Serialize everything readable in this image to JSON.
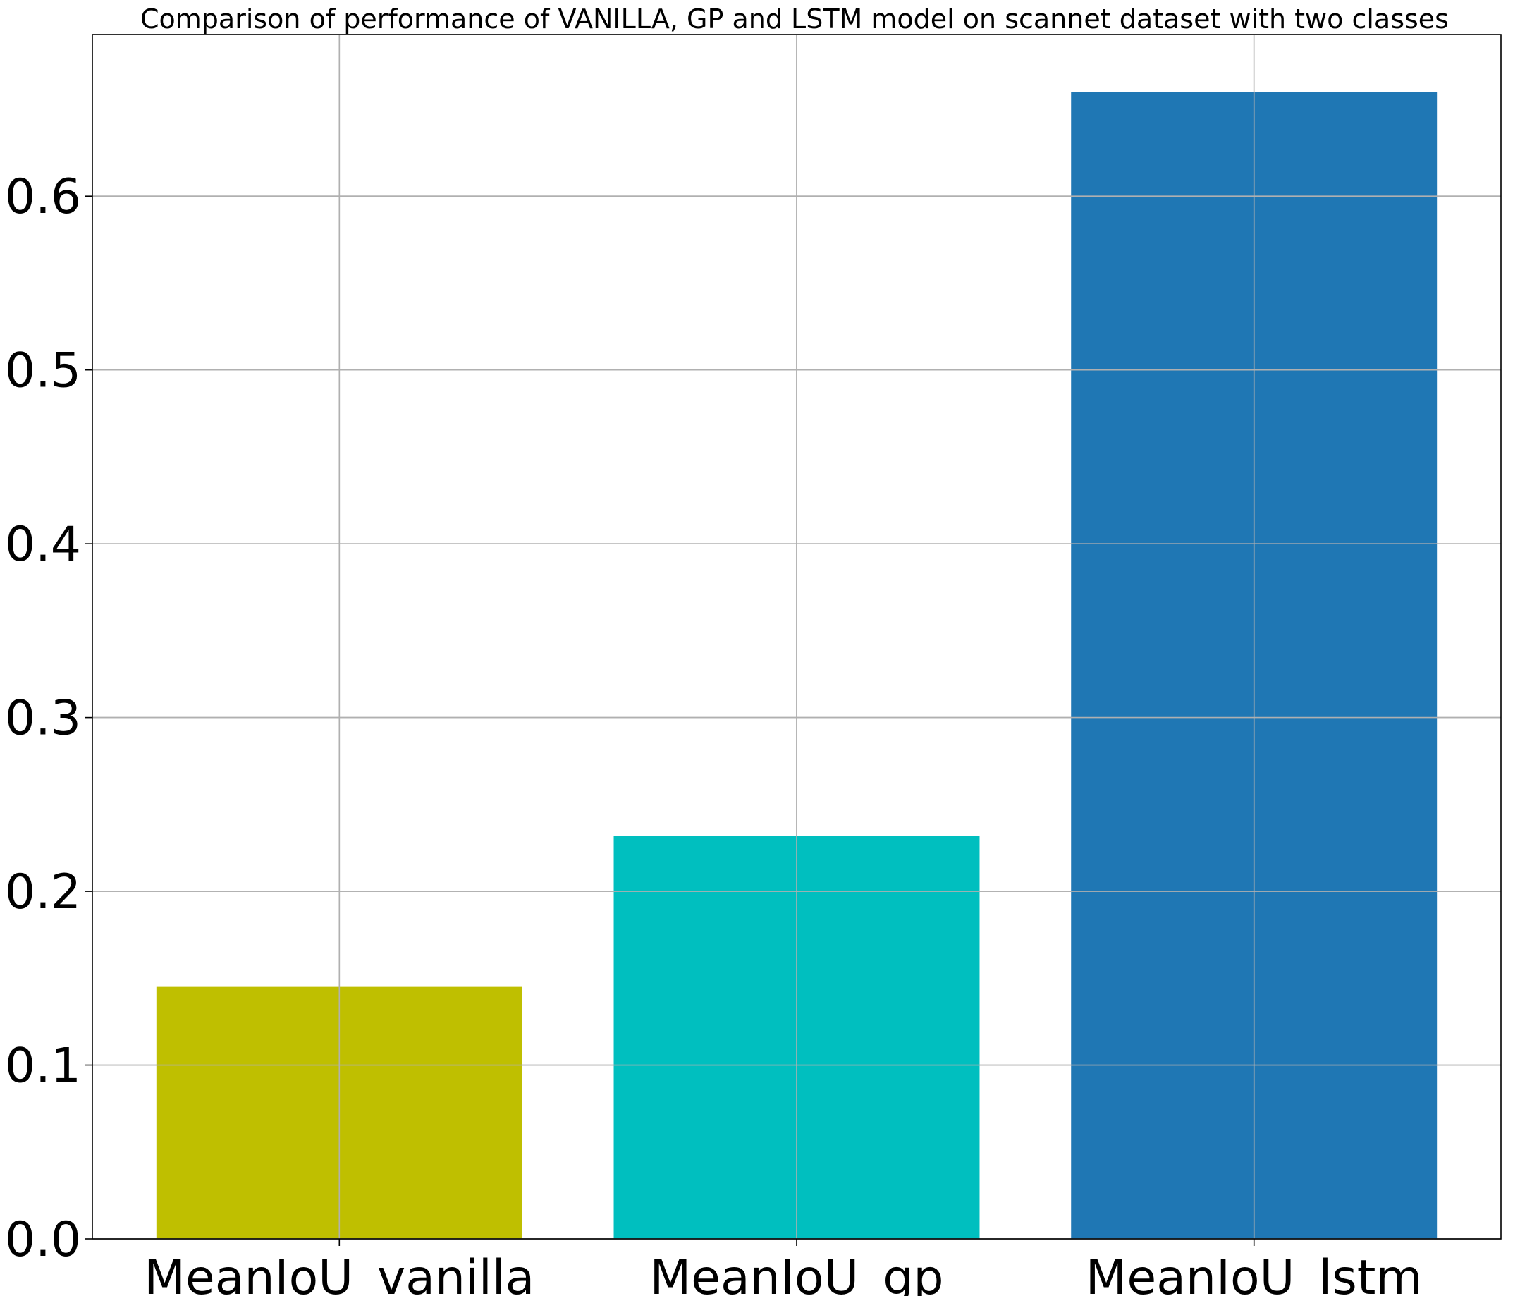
{
  "chart_data": {
    "type": "bar",
    "title": "Comparison of performance of VANILLA, GP and LSTM model on scannet dataset with two classes",
    "xlabel": "",
    "ylabel": "",
    "categories": [
      "MeanIoU_vanilla",
      "MeanIoU_gp",
      "MeanIoU_lstm"
    ],
    "values": [
      0.145,
      0.232,
      0.66
    ],
    "colors": [
      "#bfbf00",
      "#00bfbf",
      "#1f77b4"
    ],
    "ylim": [
      0.0,
      0.693
    ],
    "yticks": [
      0.0,
      0.1,
      0.2,
      0.3,
      0.4,
      0.5,
      0.6
    ],
    "ytick_labels": [
      "0.0",
      "0.1",
      "0.2",
      "0.3",
      "0.4",
      "0.5",
      "0.6"
    ],
    "grid": true,
    "legend": "none"
  }
}
